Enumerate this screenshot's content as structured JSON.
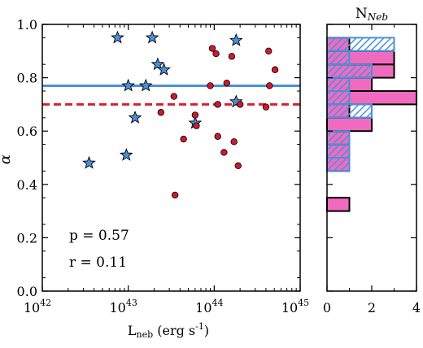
{
  "chart_data": [
    {
      "type": "scatter",
      "xlabel": "L",
      "xlabel_sub": "neb",
      "xlabel_unit_pre": " (erg s",
      "xlabel_unit_sup": "-1",
      "xlabel_unit_post": ")",
      "ylabel": "α",
      "xscale": "log",
      "xlim": [
        1e+42,
        1e+45
      ],
      "ylim": [
        0.0,
        1.0
      ],
      "xticks": [
        {
          "base": "10",
          "exp": "42",
          "value": 1e+42
        },
        {
          "base": "10",
          "exp": "43",
          "value": 1e+43
        },
        {
          "base": "10",
          "exp": "44",
          "value": 1e+44
        },
        {
          "base": "10",
          "exp": "45",
          "value": 1e+45
        }
      ],
      "yticks": [
        "0.0",
        "0.2",
        "0.4",
        "0.6",
        "0.8",
        "1.0"
      ],
      "annotations": [
        "p = 0.57",
        "r = 0.11"
      ],
      "series": [
        {
          "marker": "star",
          "color": "#4a90d9",
          "points": [
            {
              "x": 3.5e+42,
              "y": 0.48
            },
            {
              "x": 7.5e+42,
              "y": 0.95
            },
            {
              "x": 9.5e+42,
              "y": 0.51
            },
            {
              "x": 1e+43,
              "y": 0.77
            },
            {
              "x": 1.2e+43,
              "y": 0.65
            },
            {
              "x": 1.6e+43,
              "y": 0.77
            },
            {
              "x": 1.9e+43,
              "y": 0.95
            },
            {
              "x": 2.2e+43,
              "y": 0.85
            },
            {
              "x": 2.6e+43,
              "y": 0.83
            },
            {
              "x": 6e+43,
              "y": 0.63
            },
            {
              "x": 1.8e+44,
              "y": 0.94
            },
            {
              "x": 1.8e+44,
              "y": 0.71
            }
          ]
        },
        {
          "marker": "circle",
          "color": "#cc1a2e",
          "points": [
            {
              "x": 2.4e+43,
              "y": 0.67
            },
            {
              "x": 3.4e+43,
              "y": 0.73
            },
            {
              "x": 3.5e+43,
              "y": 0.36
            },
            {
              "x": 4.4e+43,
              "y": 0.57
            },
            {
              "x": 6e+43,
              "y": 0.66
            },
            {
              "x": 6.2e+43,
              "y": 0.62
            },
            {
              "x": 9e+43,
              "y": 0.77
            },
            {
              "x": 9.5e+43,
              "y": 0.91
            },
            {
              "x": 1.05e+44,
              "y": 0.89
            },
            {
              "x": 1.1e+44,
              "y": 0.7
            },
            {
              "x": 1.1e+44,
              "y": 0.58
            },
            {
              "x": 1.3e+44,
              "y": 0.52
            },
            {
              "x": 1.4e+44,
              "y": 0.78
            },
            {
              "x": 1.6e+44,
              "y": 0.88
            },
            {
              "x": 1.7e+44,
              "y": 0.56
            },
            {
              "x": 1.9e+44,
              "y": 0.47
            },
            {
              "x": 2e+44,
              "y": 0.7
            },
            {
              "x": 4e+44,
              "y": 0.69
            },
            {
              "x": 4.3e+44,
              "y": 0.9
            },
            {
              "x": 4.4e+44,
              "y": 0.77
            },
            {
              "x": 5.1e+44,
              "y": 0.83
            }
          ]
        }
      ],
      "hlines": [
        {
          "y": 0.77,
          "color": "#4a90d9",
          "style": "solid"
        },
        {
          "y": 0.7,
          "color": "#d92030",
          "style": "dashed"
        }
      ]
    },
    {
      "type": "bar",
      "orientation": "horizontal",
      "title": "N",
      "title_sub": "Neb",
      "xlim": [
        0,
        4
      ],
      "xticks": [
        "0",
        "2",
        "4"
      ],
      "bin_edges": [
        0.3,
        0.35,
        0.4,
        0.45,
        0.5,
        0.55,
        0.6,
        0.65,
        0.7,
        0.75,
        0.8,
        0.85,
        0.9,
        0.95
      ],
      "series": [
        {
          "style": "solid",
          "color": "#f06bc0",
          "counts": [
            1,
            0,
            0,
            1,
            1,
            1,
            2,
            1,
            4,
            2,
            3,
            3,
            1
          ]
        },
        {
          "style": "hatched",
          "color": "#4a90d9",
          "counts": [
            0,
            0,
            0,
            1,
            1,
            1,
            0,
            2,
            1,
            1,
            2,
            1,
            3
          ]
        }
      ]
    }
  ]
}
